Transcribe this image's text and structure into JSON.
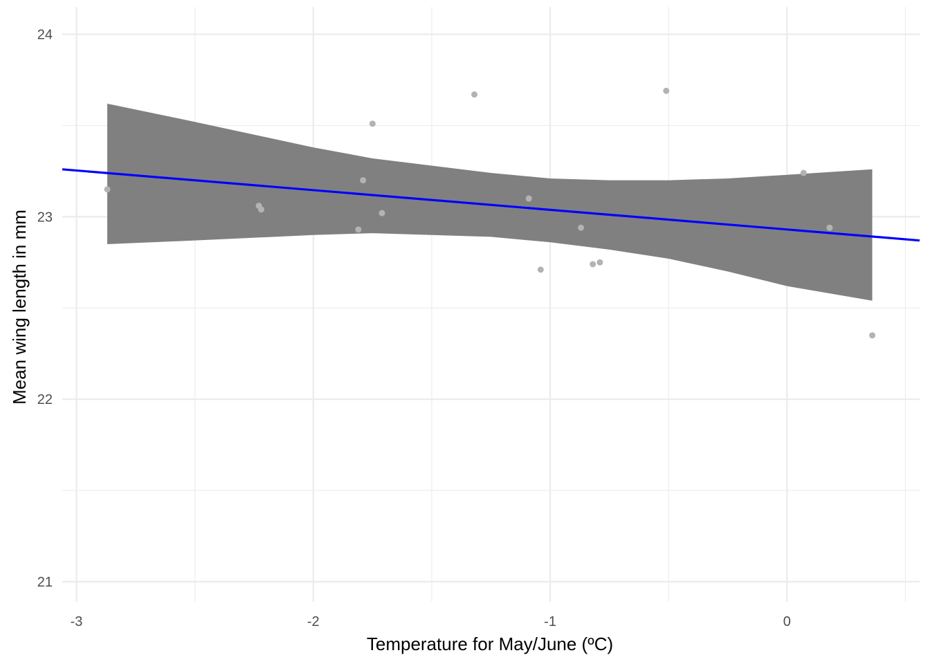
{
  "chart_data": {
    "type": "scatter",
    "title": "",
    "xlabel": "Temperature for May/June (ºC)",
    "ylabel": "Mean wing length in mm",
    "xlim": [
      -3.06,
      0.56
    ],
    "ylim": [
      20.89,
      24.15
    ],
    "x_ticks": [
      -3,
      -2,
      -1,
      0
    ],
    "x_tick_labels": [
      "-3",
      "-2",
      "-1",
      "0"
    ],
    "x_minor_ticks": [
      -2.5,
      -1.5,
      -0.5,
      0.5
    ],
    "y_ticks": [
      21,
      22,
      23,
      24
    ],
    "y_tick_labels": [
      "21",
      "22",
      "23",
      "24"
    ],
    "y_minor_ticks": [
      21.5,
      22.5,
      23.5
    ],
    "grid": true,
    "legend": "none",
    "points": [
      {
        "x": -2.87,
        "y": 23.15
      },
      {
        "x": -2.23,
        "y": 23.06
      },
      {
        "x": -2.22,
        "y": 23.04
      },
      {
        "x": -1.81,
        "y": 22.93
      },
      {
        "x": -1.79,
        "y": 23.2
      },
      {
        "x": -1.75,
        "y": 23.51
      },
      {
        "x": -1.71,
        "y": 23.02
      },
      {
        "x": -1.32,
        "y": 23.67
      },
      {
        "x": -1.09,
        "y": 23.1
      },
      {
        "x": -1.04,
        "y": 22.71
      },
      {
        "x": -0.87,
        "y": 22.94
      },
      {
        "x": -0.82,
        "y": 22.74
      },
      {
        "x": -0.79,
        "y": 22.75
      },
      {
        "x": -0.51,
        "y": 23.69
      },
      {
        "x": 0.07,
        "y": 23.24
      },
      {
        "x": 0.18,
        "y": 22.94
      },
      {
        "x": 0.36,
        "y": 22.35
      }
    ],
    "fit_line": {
      "x": [
        -3.06,
        0.56
      ],
      "y": [
        23.26,
        22.87
      ]
    },
    "confidence_band": {
      "x": [
        -2.87,
        -2.5,
        -2.0,
        -1.75,
        -1.5,
        -1.25,
        -1.0,
        -0.75,
        -0.5,
        -0.25,
        0.0,
        0.36
      ],
      "lower": [
        22.85,
        22.87,
        22.9,
        22.91,
        22.9,
        22.89,
        22.86,
        22.82,
        22.77,
        22.7,
        22.62,
        22.54
      ],
      "upper": [
        23.62,
        23.52,
        23.38,
        23.32,
        23.28,
        23.24,
        23.21,
        23.2,
        23.2,
        23.21,
        23.23,
        23.26
      ]
    },
    "colors": {
      "points": "#b3b3b3",
      "fit_line": "#0000ff",
      "band": "#808080",
      "grid": "#ebebeb",
      "tick_label": "#4d4d4d",
      "axis_title": "#000000"
    }
  }
}
